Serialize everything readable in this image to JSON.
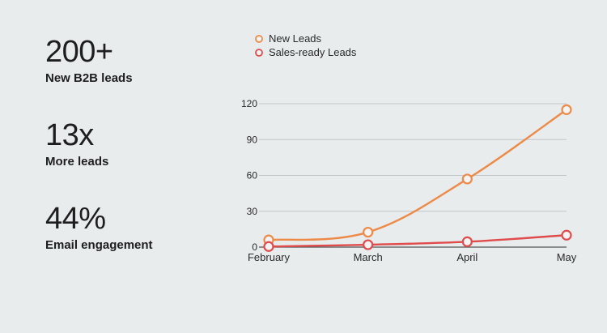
{
  "stats": [
    {
      "value": "200+",
      "label": "New B2B leads"
    },
    {
      "value": "13x",
      "label": "More leads"
    },
    {
      "value": "44%",
      "label": "Email engagement"
    }
  ],
  "chart_data": {
    "type": "line",
    "categories": [
      "February",
      "March",
      "April",
      "May"
    ],
    "series": [
      {
        "name": "New Leads",
        "color": "#ee8a48",
        "values": [
          6,
          12.5,
          57,
          115
        ]
      },
      {
        "name": "Sales-ready Leads",
        "color": "#e04b4b",
        "values": [
          0.5,
          2,
          4.5,
          10
        ]
      }
    ],
    "yticks": [
      0,
      30,
      60,
      90,
      120
    ],
    "ylim": [
      0,
      120
    ],
    "grid": true,
    "legend": "top-left",
    "title": "",
    "xlabel": "",
    "ylabel": ""
  }
}
